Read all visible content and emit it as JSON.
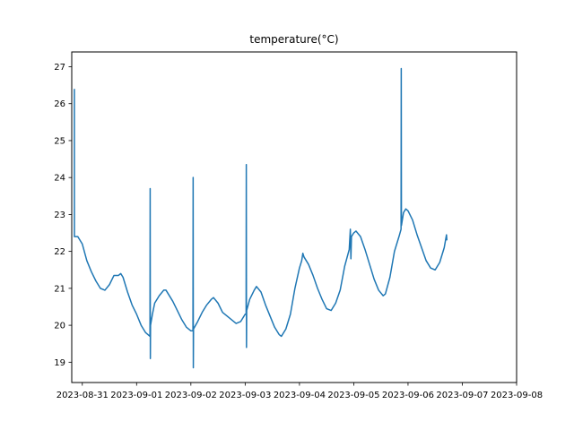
{
  "chart_data": {
    "type": "line",
    "title": "temperature(°C)",
    "xlabel": "",
    "ylabel": "",
    "x_ticks": [
      "2023-08-31",
      "2023-09-01",
      "2023-09-02",
      "2023-09-03",
      "2023-09-04",
      "2023-09-05",
      "2023-09-06",
      "2023-09-07",
      "2023-09-08"
    ],
    "xlim": [
      "2023-08-30T19:20",
      "2023-09-08T00:00"
    ],
    "y_ticks": [
      19,
      20,
      21,
      22,
      23,
      24,
      25,
      26,
      27
    ],
    "ylim": [
      18.45,
      27.4
    ],
    "grid": false,
    "series": [
      {
        "color": "#1f77b4",
        "points": [
          [
            "2023-08-30T20:30",
            26.4
          ],
          [
            "2023-08-30T20:31",
            22.4
          ],
          [
            "2023-08-30T22:00",
            22.4
          ],
          [
            "2023-08-31T00:00",
            22.2
          ],
          [
            "2023-08-31T02:00",
            21.75
          ],
          [
            "2023-08-31T04:00",
            21.45
          ],
          [
            "2023-08-31T06:00",
            21.2
          ],
          [
            "2023-08-31T08:00",
            21.0
          ],
          [
            "2023-08-31T10:00",
            20.95
          ],
          [
            "2023-08-31T12:00",
            21.1
          ],
          [
            "2023-08-31T14:00",
            21.35
          ],
          [
            "2023-08-31T16:00",
            21.35
          ],
          [
            "2023-08-31T17:00",
            21.4
          ],
          [
            "2023-08-31T18:00",
            21.3
          ],
          [
            "2023-08-31T20:00",
            20.9
          ],
          [
            "2023-08-31T22:00",
            20.55
          ],
          [
            "2023-09-01T00:00",
            20.3
          ],
          [
            "2023-09-01T02:00",
            20.0
          ],
          [
            "2023-09-01T04:00",
            19.8
          ],
          [
            "2023-09-01T05:55",
            19.7
          ],
          [
            "2023-09-01T06:00",
            23.7
          ],
          [
            "2023-09-01T06:05",
            19.1
          ],
          [
            "2023-09-01T06:10",
            20.0
          ],
          [
            "2023-09-01T07:00",
            20.3
          ],
          [
            "2023-09-01T08:00",
            20.6
          ],
          [
            "2023-09-01T10:00",
            20.8
          ],
          [
            "2023-09-01T12:00",
            20.95
          ],
          [
            "2023-09-01T13:00",
            20.95
          ],
          [
            "2023-09-01T16:00",
            20.65
          ],
          [
            "2023-09-01T18:00",
            20.4
          ],
          [
            "2023-09-01T20:00",
            20.15
          ],
          [
            "2023-09-01T22:00",
            19.95
          ],
          [
            "2023-09-02T00:00",
            19.85
          ],
          [
            "2023-09-02T00:55",
            19.85
          ],
          [
            "2023-09-02T01:00",
            24.0
          ],
          [
            "2023-09-02T01:05",
            18.85
          ],
          [
            "2023-09-02T01:10",
            19.9
          ],
          [
            "2023-09-02T03:00",
            20.1
          ],
          [
            "2023-09-02T05:00",
            20.35
          ],
          [
            "2023-09-02T07:00",
            20.55
          ],
          [
            "2023-09-02T09:00",
            20.7
          ],
          [
            "2023-09-02T10:00",
            20.75
          ],
          [
            "2023-09-02T12:00",
            20.6
          ],
          [
            "2023-09-02T14:00",
            20.35
          ],
          [
            "2023-09-02T16:00",
            20.25
          ],
          [
            "2023-09-02T18:00",
            20.15
          ],
          [
            "2023-09-02T20:00",
            20.05
          ],
          [
            "2023-09-02T22:00",
            20.1
          ],
          [
            "2023-09-03T00:00",
            20.3
          ],
          [
            "2023-09-03T00:25",
            20.3
          ],
          [
            "2023-09-03T00:30",
            24.35
          ],
          [
            "2023-09-03T00:35",
            19.4
          ],
          [
            "2023-09-03T00:40",
            20.4
          ],
          [
            "2023-09-03T02:00",
            20.7
          ],
          [
            "2023-09-03T04:00",
            20.95
          ],
          [
            "2023-09-03T05:00",
            21.05
          ],
          [
            "2023-09-03T07:00",
            20.9
          ],
          [
            "2023-09-03T09:00",
            20.55
          ],
          [
            "2023-09-03T11:00",
            20.25
          ],
          [
            "2023-09-03T13:00",
            19.95
          ],
          [
            "2023-09-03T15:00",
            19.75
          ],
          [
            "2023-09-03T16:00",
            19.7
          ],
          [
            "2023-09-03T18:00",
            19.9
          ],
          [
            "2023-09-03T20:00",
            20.3
          ],
          [
            "2023-09-03T22:00",
            21.0
          ],
          [
            "2023-09-04T00:00",
            21.55
          ],
          [
            "2023-09-04T01:00",
            21.75
          ],
          [
            "2023-09-04T01:30",
            21.95
          ],
          [
            "2023-09-04T02:00",
            21.85
          ],
          [
            "2023-09-04T04:00",
            21.65
          ],
          [
            "2023-09-04T06:00",
            21.35
          ],
          [
            "2023-09-04T08:00",
            21.0
          ],
          [
            "2023-09-04T10:00",
            20.7
          ],
          [
            "2023-09-04T12:00",
            20.45
          ],
          [
            "2023-09-04T14:00",
            20.4
          ],
          [
            "2023-09-04T16:00",
            20.6
          ],
          [
            "2023-09-04T18:00",
            20.95
          ],
          [
            "2023-09-04T20:00",
            21.6
          ],
          [
            "2023-09-04T22:00",
            22.05
          ],
          [
            "2023-09-04T22:30",
            22.6
          ],
          [
            "2023-09-04T22:45",
            21.8
          ],
          [
            "2023-09-04T23:00",
            22.4
          ],
          [
            "2023-09-05T00:00",
            22.5
          ],
          [
            "2023-09-05T01:00",
            22.55
          ],
          [
            "2023-09-05T03:00",
            22.4
          ],
          [
            "2023-09-05T05:00",
            22.05
          ],
          [
            "2023-09-05T07:00",
            21.65
          ],
          [
            "2023-09-05T09:00",
            21.25
          ],
          [
            "2023-09-05T11:00",
            20.95
          ],
          [
            "2023-09-05T13:00",
            20.8
          ],
          [
            "2023-09-05T14:00",
            20.85
          ],
          [
            "2023-09-05T16:00",
            21.3
          ],
          [
            "2023-09-05T18:00",
            22.0
          ],
          [
            "2023-09-05T20:00",
            22.4
          ],
          [
            "2023-09-05T20:55",
            22.6
          ],
          [
            "2023-09-05T21:00",
            26.95
          ],
          [
            "2023-09-05T21:05",
            22.7
          ],
          [
            "2023-09-05T22:00",
            23.05
          ],
          [
            "2023-09-05T23:00",
            23.15
          ],
          [
            "2023-09-06T00:00",
            23.1
          ],
          [
            "2023-09-06T02:00",
            22.85
          ],
          [
            "2023-09-06T04:00",
            22.45
          ],
          [
            "2023-09-06T06:00",
            22.1
          ],
          [
            "2023-09-06T08:00",
            21.75
          ],
          [
            "2023-09-06T10:00",
            21.55
          ],
          [
            "2023-09-06T12:00",
            21.5
          ],
          [
            "2023-09-06T14:00",
            21.7
          ],
          [
            "2023-09-06T16:00",
            22.1
          ],
          [
            "2023-09-06T17:00",
            22.45
          ],
          [
            "2023-09-06T17:10",
            22.3
          ]
        ]
      }
    ]
  }
}
